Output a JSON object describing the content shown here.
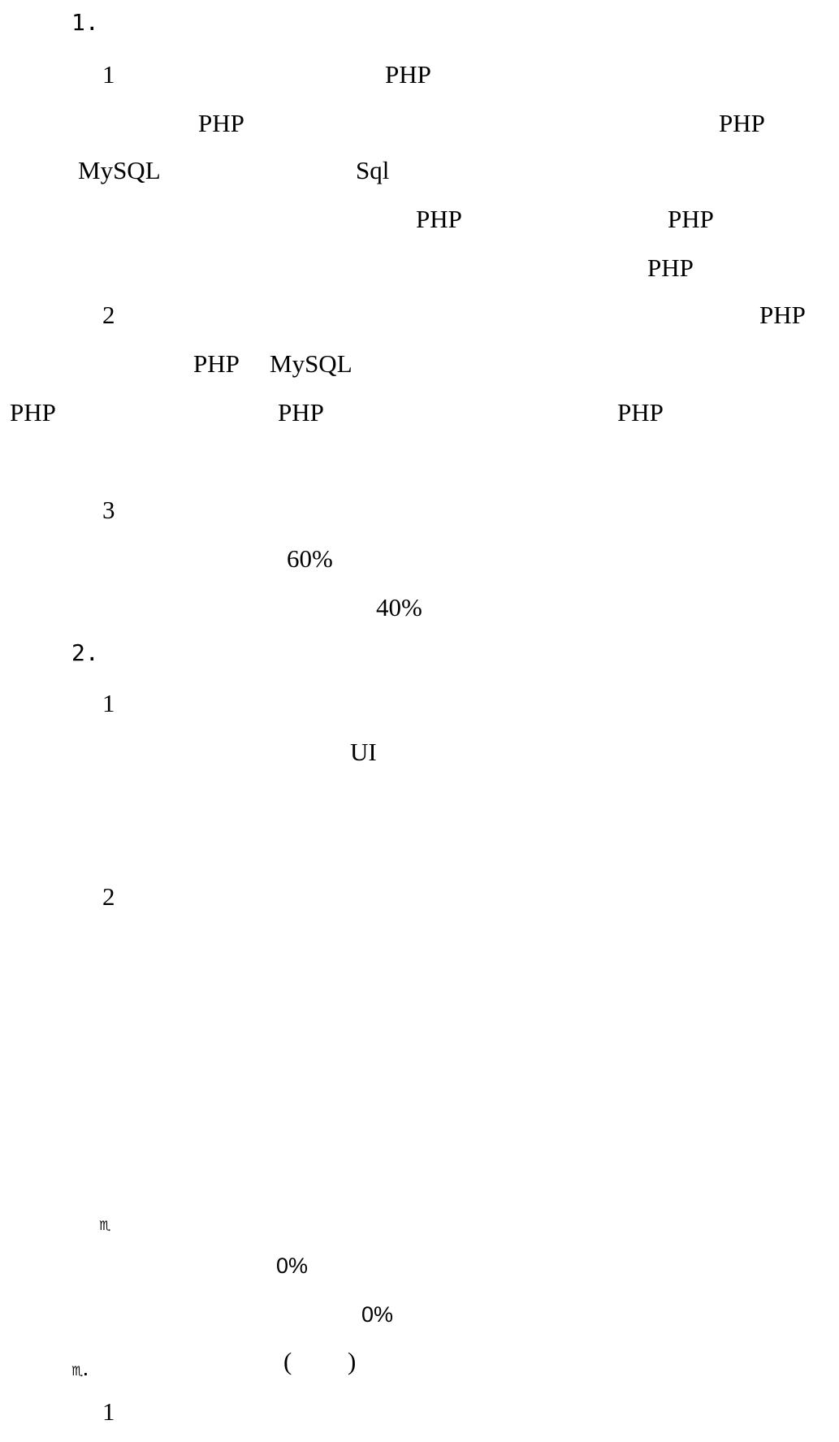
{
  "section1": {
    "heading": "1.",
    "item1": {
      "number": "1",
      "line1_php": "PHP",
      "line2_php_a": "PHP",
      "line2_php_b": "PHP",
      "line3_mysql": "MySQL",
      "line3_sql": "Sql",
      "line4_php_a": "PHP",
      "line4_php_b": "PHP",
      "line5_php": "PHP"
    },
    "item2": {
      "number": "2",
      "line1_php": "PHP",
      "line2_php": "PHP",
      "line2_mysql": "MySQL",
      "line3_php_a": "PHP",
      "line3_php_b": "PHP",
      "line3_php_c": "PHP"
    },
    "item3": {
      "number": "3",
      "percent_a": "60%",
      "percent_b": "40%"
    }
  },
  "section2": {
    "heading": "2.",
    "item1": {
      "number": "1",
      "ui": "UI"
    },
    "item2": {
      "number": "2"
    }
  },
  "section3": {
    "bullet": "♏",
    "percent_a": "0%",
    "percent_b": "0%"
  },
  "section4": {
    "heading": "♏.",
    "paren_open": "(",
    "paren_close": ")",
    "item1": {
      "number": "1"
    }
  }
}
